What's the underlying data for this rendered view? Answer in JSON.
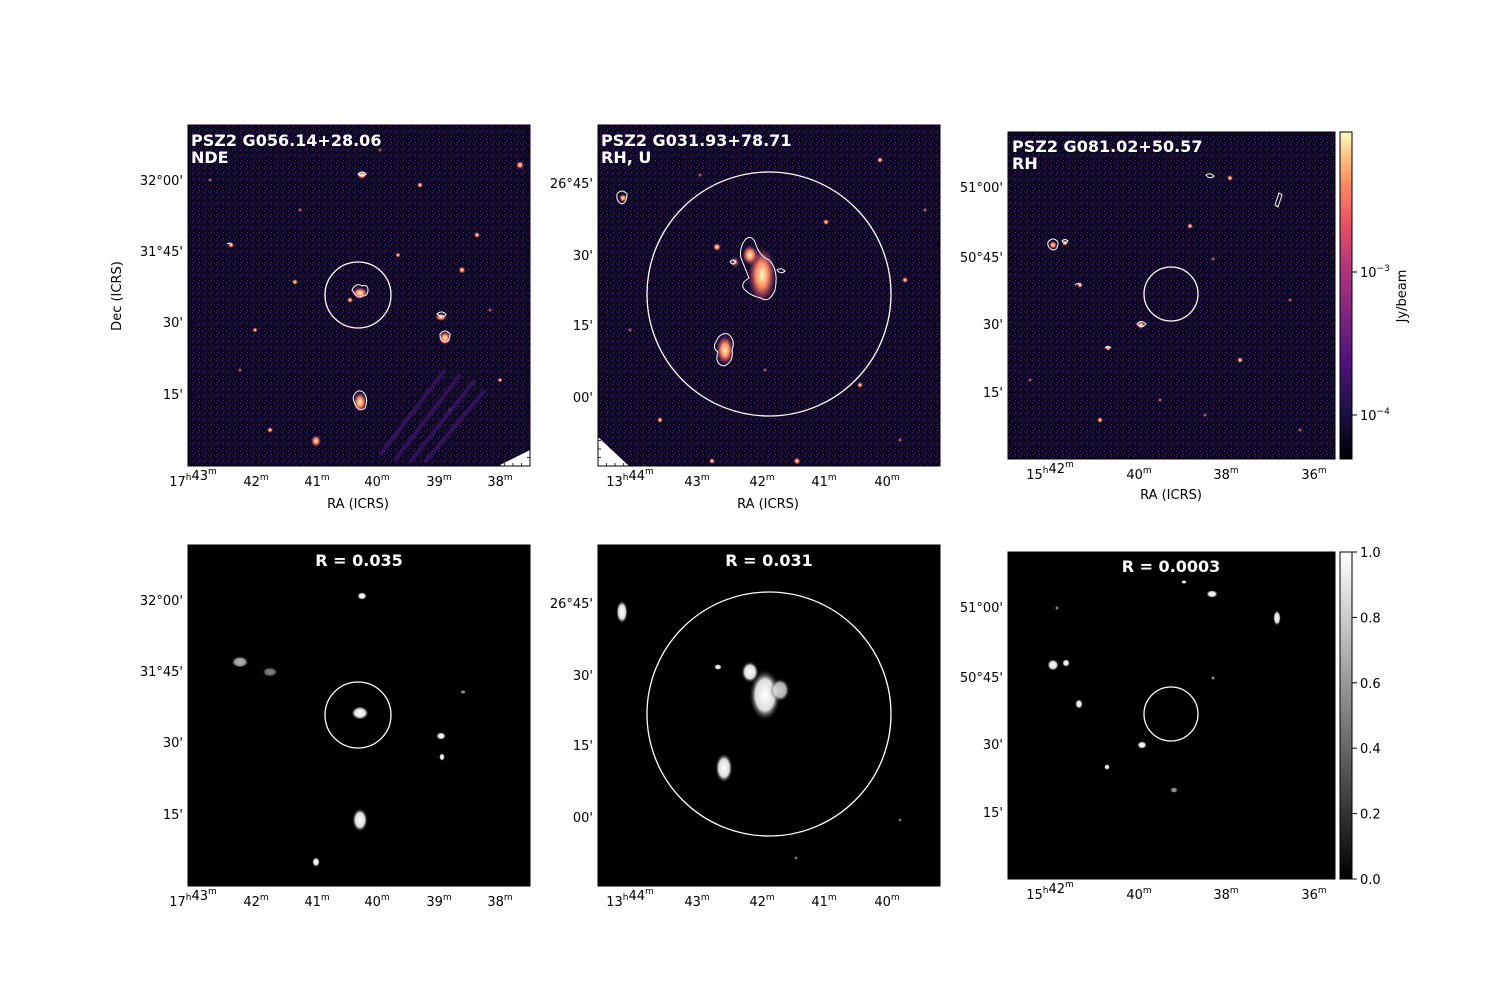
{
  "panels": [
    {
      "name": "G056",
      "title": [
        "PSZ2 G056.14+28.06",
        "NDE"
      ],
      "ra_ticks": [
        [
          "17",
          "h",
          "43",
          "m"
        ],
        [
          "42",
          "m"
        ],
        [
          "41",
          "m"
        ],
        [
          "40",
          "m"
        ],
        [
          "39",
          "m"
        ],
        [
          "38",
          "m"
        ]
      ],
      "dec_ticks": [
        "32°00'",
        "31°45'",
        "30'",
        "15'"
      ],
      "dec_ticks_side": "left"
    },
    {
      "name": "G031",
      "title": [
        "PSZ2 G031.93+78.71",
        "RH, U"
      ],
      "ra_ticks": [
        [
          "13",
          "h",
          "44",
          "m"
        ],
        [
          "43",
          "m"
        ],
        [
          "42",
          "m"
        ],
        [
          "41",
          "m"
        ],
        [
          "40",
          "m"
        ]
      ],
      "dec_ticks": [
        "26°45'",
        "30'",
        "15'",
        "00'"
      ],
      "dec_ticks_side": "right"
    },
    {
      "name": "G081",
      "title": [
        "PSZ2 G081.02+50.57",
        "RH"
      ],
      "ra_ticks": [
        [
          "15",
          "h",
          "42",
          "m"
        ],
        [
          "40",
          "m"
        ],
        [
          "38",
          "m"
        ],
        [
          "36",
          "m"
        ]
      ],
      "dec_ticks": [
        "51°00'",
        "50°45'",
        "30'",
        "15'"
      ],
      "dec_ticks_side": "left"
    }
  ],
  "masks": [
    {
      "name": "G056",
      "r_label": "R = 0.035"
    },
    {
      "name": "G031",
      "r_label": "R = 0.031"
    },
    {
      "name": "G081",
      "r_label": "R = 0.0003"
    }
  ],
  "axis_labels": {
    "ra": "RA (ICRS)",
    "dec": "Dec (ICRS)"
  },
  "colorbar_top": {
    "label": "Jy/beam",
    "ticks": [
      [
        "10",
        "−3"
      ],
      [
        "10",
        "−4"
      ]
    ],
    "colormap": "magma"
  },
  "colorbar_bottom": {
    "ticks": [
      "1.0",
      "0.8",
      "0.6",
      "0.4",
      "0.2",
      "0.0"
    ],
    "colormap": "gray"
  },
  "colors": {
    "background": "#ffffff",
    "circle": "#ffffff",
    "contour": "#ffffff",
    "title": "#ffffff"
  }
}
